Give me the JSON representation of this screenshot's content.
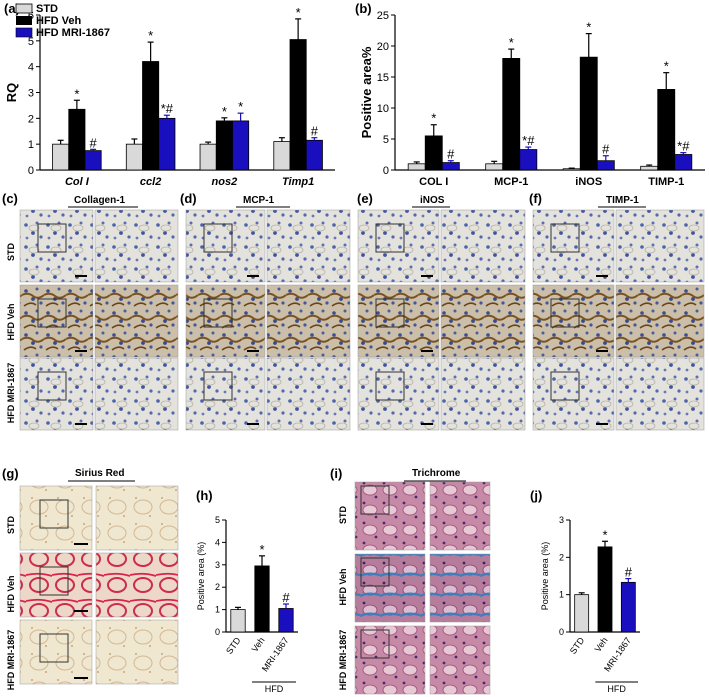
{
  "panels": {
    "a": "(a)",
    "b": "(b)",
    "c": "(c)",
    "d": "(d)",
    "e": "(e)",
    "f": "(f)",
    "g": "(g)",
    "h": "(h)",
    "i": "(i)",
    "j": "(j)"
  },
  "colors": {
    "std": "#d9d9d9",
    "veh": "#000000",
    "mri": "#1a0fbf"
  },
  "legend": [
    "STD",
    "HFD Veh",
    "HFD MRI-1867"
  ],
  "micro": {
    "c_title": "Collagen-1",
    "d_title": "MCP-1",
    "e_title": "iNOS",
    "f_title": "TIMP-1",
    "g_title": "Sirius Red",
    "i_title": "Trichrome",
    "rows": [
      "STD",
      "HFD Veh",
      "HFD MRI-1867"
    ]
  },
  "chart_data": [
    {
      "id": "a",
      "type": "bar",
      "ylabel": "RQ",
      "ylim": [
        0,
        6
      ],
      "yticks": [
        0,
        1,
        2,
        3,
        4,
        5,
        6
      ],
      "categories": [
        "Col I",
        "ccl2",
        "nos2",
        "Timp1"
      ],
      "series": [
        {
          "name": "STD",
          "values": [
            1.0,
            1.0,
            1.0,
            1.1
          ],
          "err": [
            0.15,
            0.2,
            0.08,
            0.15
          ],
          "sig": [
            "",
            "",
            "",
            ""
          ]
        },
        {
          "name": "HFD Veh",
          "values": [
            2.35,
            4.2,
            1.9,
            5.05
          ],
          "err": [
            0.35,
            0.75,
            0.12,
            0.8
          ],
          "sig": [
            "*",
            "*",
            "*",
            "*"
          ]
        },
        {
          "name": "HFD MRI-1867",
          "values": [
            0.75,
            2.0,
            1.9,
            1.15
          ],
          "err": [
            0.05,
            0.12,
            0.3,
            0.1
          ],
          "sig": [
            "#",
            "*#",
            "*",
            "#"
          ]
        }
      ]
    },
    {
      "id": "b",
      "type": "bar",
      "ylabel": "Positive area%",
      "ylim": [
        0,
        25
      ],
      "yticks": [
        0,
        5,
        10,
        15,
        20,
        25
      ],
      "categories": [
        "COL I",
        "MCP-1",
        "iNOS",
        "TIMP-1"
      ],
      "series": [
        {
          "name": "STD",
          "values": [
            1.0,
            1.0,
            0.2,
            0.6
          ],
          "err": [
            0.3,
            0.4,
            0.1,
            0.2
          ],
          "sig": [
            "",
            "",
            "",
            ""
          ]
        },
        {
          "name": "HFD Veh",
          "values": [
            5.5,
            18.0,
            18.2,
            13.0
          ],
          "err": [
            1.8,
            1.5,
            3.8,
            2.7
          ],
          "sig": [
            "*",
            "*",
            "*",
            "*"
          ]
        },
        {
          "name": "HFD MRI-1867",
          "values": [
            1.2,
            3.3,
            1.5,
            2.5
          ],
          "err": [
            0.3,
            0.4,
            0.8,
            0.3
          ],
          "sig": [
            "#",
            "*#",
            "#",
            "*#"
          ]
        }
      ]
    },
    {
      "id": "h",
      "type": "bar",
      "ylabel": "Positive area (%)",
      "ylim": [
        0,
        5
      ],
      "yticks": [
        0,
        1,
        2,
        3,
        4,
        5
      ],
      "categories": [
        "STD",
        "Veh",
        "MRI-1867"
      ],
      "group_label": "HFD",
      "values": [
        1.0,
        2.95,
        1.05
      ],
      "err": [
        0.1,
        0.45,
        0.2
      ],
      "sig": [
        "",
        "*",
        "#"
      ]
    },
    {
      "id": "j",
      "type": "bar",
      "ylabel": "Positive area (%)",
      "ylim": [
        0,
        3
      ],
      "yticks": [
        0,
        1,
        2,
        3
      ],
      "categories": [
        "STD",
        "Veh",
        "MRI-1867"
      ],
      "group_label": "HFD",
      "values": [
        1.0,
        2.28,
        1.33
      ],
      "err": [
        0.05,
        0.15,
        0.1
      ],
      "sig": [
        "",
        "*",
        "#"
      ]
    }
  ]
}
